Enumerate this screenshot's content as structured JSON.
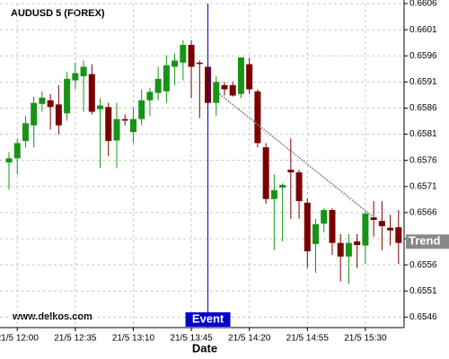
{
  "chart_data": {
    "type": "candlestick",
    "title": "AUDUSD 5 (FOREX)",
    "x_label": "Date",
    "watermark": "www.delkos.com",
    "categories": [
      null,
      "21/5 12:00",
      null,
      null,
      null,
      null,
      null,
      null,
      "21/5 12:35",
      null,
      null,
      null,
      null,
      null,
      null,
      "21/5 13:10",
      null,
      null,
      null,
      null,
      null,
      null,
      "21/5 13:45",
      null,
      null,
      null,
      null,
      null,
      null,
      "21/5 14:20",
      null,
      null,
      null,
      null,
      null,
      null,
      "21/5 14:55",
      null,
      null,
      null,
      null,
      null,
      null,
      "21/5 15:30",
      null,
      null,
      null,
      null
    ],
    "open": [
      0.65756,
      0.65764,
      0.65797,
      0.65827,
      0.65868,
      0.65875,
      0.65867,
      0.6585,
      0.65913,
      0.65921,
      0.65925,
      0.65858,
      0.65862,
      0.65798,
      0.65839,
      0.65814,
      0.65839,
      0.65875,
      0.65889,
      0.65892,
      0.65939,
      0.65947,
      0.65981,
      0.65947,
      0.65939,
      0.6587,
      0.65904,
      0.65904,
      0.65887,
      0.65944,
      0.65892,
      0.65785,
      0.65686,
      0.65708,
      0.65742,
      0.65737,
      0.65679,
      0.656,
      0.65639,
      0.65665,
      0.65602,
      0.65576,
      0.65605,
      0.65597,
      0.65651,
      0.65644,
      0.65631,
      0.65632
    ],
    "high": [
      0.65776,
      0.65802,
      0.65845,
      0.65882,
      0.65892,
      0.65887,
      0.65904,
      0.6593,
      0.65947,
      0.65951,
      0.65944,
      0.65879,
      0.6587,
      0.6587,
      0.65848,
      0.65862,
      0.65896,
      0.65899,
      0.65939,
      0.65961,
      0.65964,
      0.6599,
      0.6599,
      0.65951,
      0.65947,
      0.65921,
      0.6591,
      0.6591,
      0.65957,
      0.65956,
      0.65896,
      0.65793,
      0.65733,
      0.65716,
      0.65802,
      0.65742,
      0.65687,
      0.65648,
      0.65668,
      0.65668,
      0.65619,
      0.65619,
      0.65619,
      0.65662,
      0.65682,
      0.65682,
      0.65656,
      0.65665
    ],
    "low": [
      0.65704,
      0.65733,
      0.65785,
      0.65785,
      0.65853,
      0.65819,
      0.6581,
      0.65836,
      0.65896,
      0.65853,
      0.65848,
      0.65745,
      0.65768,
      0.65745,
      0.65827,
      0.65793,
      0.65827,
      0.65845,
      0.65875,
      0.6587,
      0.65904,
      0.65913,
      0.65879,
      0.65841,
      0.65836,
      0.65845,
      0.65884,
      0.65882,
      0.65879,
      0.65887,
      0.65785,
      0.65677,
      0.65588,
      0.65605,
      0.65648,
      0.65648,
      0.65554,
      0.65545,
      0.65622,
      0.65579,
      0.65528,
      0.65523,
      0.65554,
      0.65562,
      0.65614,
      0.65588,
      0.65597,
      0.65562
    ],
    "close": [
      0.65764,
      0.65793,
      0.65831,
      0.6587,
      0.6588,
      0.65862,
      0.65827,
      0.65916,
      0.65927,
      0.65939,
      0.65853,
      0.65865,
      0.65797,
      0.65839,
      0.65836,
      0.65839,
      0.65875,
      0.65891,
      0.65916,
      0.65942,
      0.65951,
      0.65981,
      0.65939,
      0.65946,
      0.6587,
      0.6591,
      0.65896,
      0.65884,
      0.65957,
      0.65896,
      0.65793,
      0.65686,
      0.65703,
      0.65713,
      0.65737,
      0.65682,
      0.65586,
      0.65638,
      0.65665,
      0.65602,
      0.65576,
      0.65602,
      0.65598,
      0.65658,
      0.65646,
      0.65634,
      0.65626,
      0.65602
    ],
    "up_color": "#179417",
    "down_color": "#7a0000",
    "ylim": [
      0.6544,
      0.6606
    ],
    "yticks": [
      0.6546,
      0.6551,
      0.6556,
      0.6561,
      0.6566,
      0.6571,
      0.6576,
      0.6581,
      0.6586,
      0.6591,
      0.6596,
      0.6601,
      0.6606
    ],
    "grid": true,
    "event": {
      "label": "Event",
      "index": 24,
      "color": "#0000cc"
    },
    "trend": {
      "label": "Trend",
      "start": {
        "index": 25.4,
        "value": 0.65887
      },
      "end": {
        "index": 44,
        "value": 0.65651
      },
      "color": "#888888"
    }
  }
}
